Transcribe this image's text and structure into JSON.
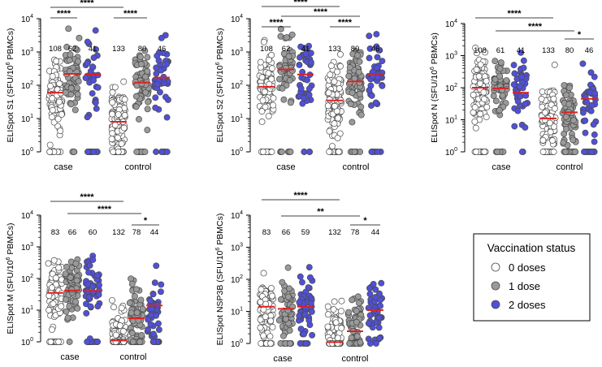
{
  "chart_data": [
    {
      "type": "scatter",
      "ylabel": "ELISpot S1 (SFU/10^6 PBMCs)",
      "yscale": "log",
      "ylim": [
        1,
        10000
      ],
      "groups": [
        "case",
        "control"
      ],
      "series_colors": [
        "#ffffff",
        "#9a9a9a",
        "#5050d8"
      ],
      "columns": [
        {
          "group": "case",
          "doses": 0,
          "n": 108,
          "median": 60
        },
        {
          "group": "case",
          "doses": 1,
          "n": 62,
          "median": 220
        },
        {
          "group": "case",
          "doses": 2,
          "n": 41,
          "median": 210
        },
        {
          "group": "control",
          "doses": 0,
          "n": 133,
          "median": 8
        },
        {
          "group": "control",
          "doses": 1,
          "n": 80,
          "median": 120
        },
        {
          "group": "control",
          "doses": 2,
          "n": 46,
          "median": 170
        }
      ],
      "comparisons": [
        {
          "from": 0,
          "to": 1,
          "label": "****"
        },
        {
          "from": 0,
          "to": 3,
          "label": "****"
        },
        {
          "from": 3,
          "to": 4,
          "label": "****"
        }
      ]
    },
    {
      "type": "scatter",
      "ylabel": "ELISpot S2 (SFU/10^6 PBMCs)",
      "yscale": "log",
      "ylim": [
        1,
        10000
      ],
      "groups": [
        "case",
        "control"
      ],
      "series_colors": [
        "#ffffff",
        "#9a9a9a",
        "#5050d8"
      ],
      "columns": [
        {
          "group": "case",
          "doses": 0,
          "n": 108,
          "median": 90
        },
        {
          "group": "case",
          "doses": 1,
          "n": 62,
          "median": 300
        },
        {
          "group": "case",
          "doses": 2,
          "n": 41,
          "median": 210
        },
        {
          "group": "control",
          "doses": 0,
          "n": 133,
          "median": 35
        },
        {
          "group": "control",
          "doses": 1,
          "n": 80,
          "median": 130
        },
        {
          "group": "control",
          "doses": 2,
          "n": 46,
          "median": 220
        }
      ],
      "comparisons": [
        {
          "from": 0,
          "to": 1,
          "label": "****"
        },
        {
          "from": 0,
          "to": 3,
          "label": "****"
        },
        {
          "from": 1,
          "to": 4,
          "label": "****"
        },
        {
          "from": 3,
          "to": 4,
          "label": "****"
        }
      ]
    },
    {
      "type": "scatter",
      "ylabel": "ELISpot N (SFU/10^6 PBMCs)",
      "yscale": "log",
      "ylim": [
        1,
        10000
      ],
      "groups": [
        "case",
        "control"
      ],
      "series_colors": [
        "#ffffff",
        "#9a9a9a",
        "#5050d8"
      ],
      "columns": [
        {
          "group": "case",
          "doses": 0,
          "n": 108,
          "median": 100
        },
        {
          "group": "case",
          "doses": 1,
          "n": 61,
          "median": 95
        },
        {
          "group": "case",
          "doses": 2,
          "n": 41,
          "median": 70
        },
        {
          "group": "control",
          "doses": 0,
          "n": 133,
          "median": 11
        },
        {
          "group": "control",
          "doses": 1,
          "n": 80,
          "median": 17
        },
        {
          "group": "control",
          "doses": 2,
          "n": 46,
          "median": 45
        }
      ],
      "comparisons": [
        {
          "from": 0,
          "to": 3,
          "label": "****"
        },
        {
          "from": 1,
          "to": 4,
          "label": "****"
        },
        {
          "from": 4,
          "to": 5,
          "label": "*"
        }
      ]
    },
    {
      "type": "scatter",
      "ylabel": "ELISpot M (SFU/10^6 PBMCs)",
      "yscale": "log",
      "ylim": [
        1,
        10000
      ],
      "groups": [
        "case",
        "control"
      ],
      "series_colors": [
        "#ffffff",
        "#9a9a9a",
        "#5050d8"
      ],
      "columns": [
        {
          "group": "case",
          "doses": 0,
          "n": 83,
          "median": 35
        },
        {
          "group": "case",
          "doses": 1,
          "n": 66,
          "median": 42
        },
        {
          "group": "case",
          "doses": 2,
          "n": 60,
          "median": 40
        },
        {
          "group": "control",
          "doses": 0,
          "n": 132,
          "median": 1.1
        },
        {
          "group": "control",
          "doses": 1,
          "n": 78,
          "median": 5.5
        },
        {
          "group": "control",
          "doses": 2,
          "n": 44,
          "median": 14
        }
      ],
      "comparisons": [
        {
          "from": 0,
          "to": 3,
          "label": "****"
        },
        {
          "from": 1,
          "to": 4,
          "label": "****"
        },
        {
          "from": 4,
          "to": 5,
          "label": "*"
        }
      ]
    },
    {
      "type": "scatter",
      "ylabel": "ELISpot NSP3B (SFU/10^6 PBMCs)",
      "yscale": "log",
      "ylim": [
        1,
        10000
      ],
      "groups": [
        "case",
        "control"
      ],
      "series_colors": [
        "#ffffff",
        "#9a9a9a",
        "#5050d8"
      ],
      "columns": [
        {
          "group": "case",
          "doses": 0,
          "n": 83,
          "median": 14
        },
        {
          "group": "case",
          "doses": 1,
          "n": 66,
          "median": 12
        },
        {
          "group": "case",
          "doses": 2,
          "n": 59,
          "median": 14
        },
        {
          "group": "control",
          "doses": 0,
          "n": 132,
          "median": 1.1
        },
        {
          "group": "control",
          "doses": 1,
          "n": 78,
          "median": 2.4
        },
        {
          "group": "control",
          "doses": 2,
          "n": 44,
          "median": 11
        }
      ],
      "comparisons": [
        {
          "from": 0,
          "to": 3,
          "label": "****"
        },
        {
          "from": 1,
          "to": 4,
          "label": "**"
        },
        {
          "from": 4,
          "to": 5,
          "label": "*"
        }
      ]
    }
  ],
  "legend": {
    "title": "Vaccination status",
    "items": [
      {
        "label": "0 doses",
        "color": "#ffffff"
      },
      {
        "label": "1 dose",
        "color": "#9a9a9a"
      },
      {
        "label": "2 doses",
        "color": "#5050d8"
      }
    ]
  },
  "colors": {
    "median": "#e02020",
    "marker_edge": "#4a4a4a"
  }
}
